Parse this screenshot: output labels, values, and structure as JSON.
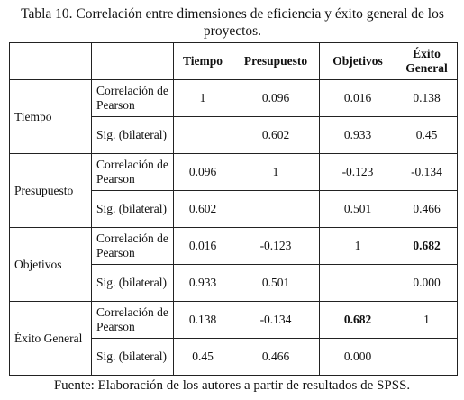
{
  "title": "Tabla 10. Correlación entre dimensiones de eficiencia y éxito general de los proyectos.",
  "table": {
    "columns": [
      "Tiempo",
      "Presupuesto",
      "Objetivos",
      "Éxito General"
    ],
    "groups": [
      {
        "label": "Tiempo",
        "rows": [
          {
            "stat": "Correlación de Pearson",
            "values": [
              "1",
              "0.096",
              "0.016",
              "0.138"
            ]
          },
          {
            "stat": "Sig. (bilateral)",
            "values": [
              null,
              "0.602",
              "0.933",
              "0.45"
            ]
          }
        ]
      },
      {
        "label": "Presupuesto",
        "rows": [
          {
            "stat": "Correlación de Pearson",
            "values": [
              "0.096",
              "1",
              "-0.123",
              "-0.134"
            ]
          },
          {
            "stat": "Sig. (bilateral)",
            "values": [
              "0.602",
              null,
              "0.501",
              "0.466"
            ]
          }
        ]
      },
      {
        "label": "Objetivos",
        "rows": [
          {
            "stat": "Correlación de Pearson",
            "values": [
              "0.016",
              "-0.123",
              "1",
              "0.682"
            ],
            "bold": [
              3
            ]
          },
          {
            "stat": "Sig. (bilateral)",
            "values": [
              "0.933",
              "0.501",
              null,
              "0.000"
            ]
          }
        ]
      },
      {
        "label": "Éxito General",
        "rows": [
          {
            "stat": "Correlación de Pearson",
            "values": [
              "0.138",
              "-0.134",
              "0.682",
              "1"
            ],
            "bold": [
              2
            ]
          },
          {
            "stat": "Sig. (bilateral)",
            "values": [
              "0.45",
              "0.466",
              "0.000",
              null
            ]
          }
        ]
      }
    ]
  },
  "source": "Fuente: Elaboración de los autores a partir de resultados de SPSS."
}
